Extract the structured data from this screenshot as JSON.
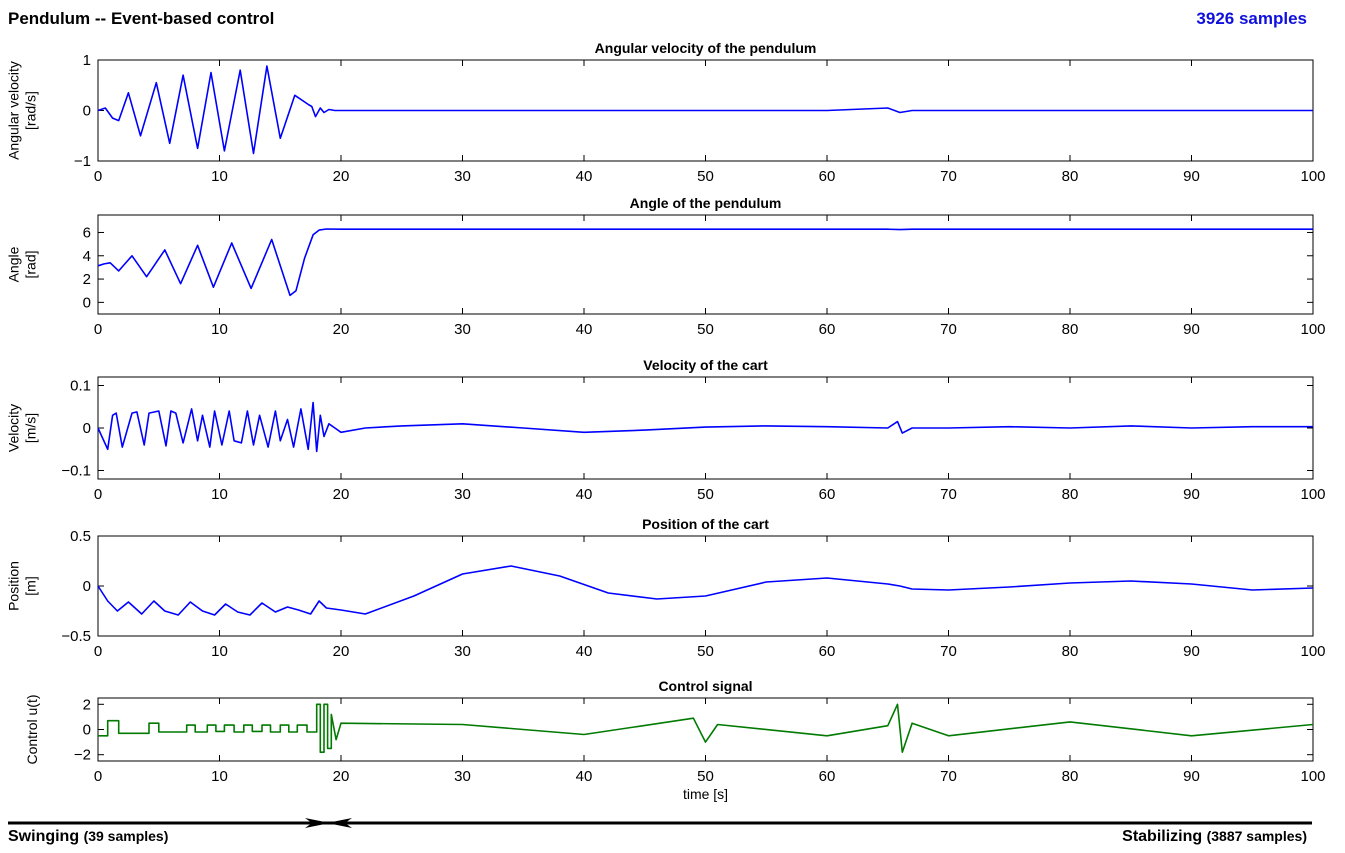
{
  "header": {
    "title": "Pendulum -- Event-based control",
    "samples": "3926 samples"
  },
  "phases": {
    "left_label": "Swinging",
    "left_count": "(39 samples)",
    "right_label": "Stabilizing",
    "right_count": "(3887 samples)"
  },
  "colors": {
    "series_blue": "#0000ff",
    "series_green": "#007a00",
    "samples_text": "#1010dd"
  },
  "chart_data": [
    {
      "type": "line",
      "title": "Angular velocity of the pendulum",
      "ylabel": [
        "Angular velocity",
        "[rad/s]"
      ],
      "xlim": [
        0,
        100
      ],
      "ylim": [
        -1,
        1
      ],
      "xticks": [
        0,
        10,
        20,
        30,
        40,
        50,
        60,
        70,
        80,
        90,
        100
      ],
      "yticks": [
        -1,
        0,
        1
      ],
      "color": "#0000ff",
      "series": [
        {
          "x": [
            0,
            0.6,
            1.2,
            1.7,
            2.5,
            3.5,
            4.8,
            5.9,
            7,
            8.2,
            9.3,
            10.4,
            11.7,
            12.8,
            13.9,
            15,
            16.2,
            17.3,
            17.6,
            17.9,
            18.3,
            18.6,
            19,
            19.5,
            20,
            21,
            25,
            30,
            35,
            40,
            45,
            50,
            55,
            60,
            65,
            66,
            67,
            70,
            75,
            80,
            85,
            90,
            95,
            100
          ],
          "y": [
            0,
            0.05,
            -0.15,
            -0.2,
            0.35,
            -0.5,
            0.55,
            -0.65,
            0.7,
            -0.75,
            0.75,
            -0.8,
            0.8,
            -0.85,
            0.88,
            -0.55,
            0.3,
            0.12,
            0.08,
            -0.12,
            0.05,
            -0.04,
            0.02,
            0,
            0,
            0,
            0,
            0,
            0,
            0,
            0,
            0,
            0,
            0,
            0.05,
            -0.04,
            0,
            0,
            0,
            0,
            0,
            0,
            0,
            0
          ]
        }
      ]
    },
    {
      "type": "line",
      "title": "Angle of the pendulum",
      "ylabel": [
        "Angle",
        "[rad]"
      ],
      "xlim": [
        0,
        100
      ],
      "ylim": [
        -1,
        7.5
      ],
      "xticks": [
        0,
        10,
        20,
        30,
        40,
        50,
        60,
        70,
        80,
        90,
        100
      ],
      "yticks": [
        0,
        2,
        4,
        6
      ],
      "color": "#0000ff",
      "series": [
        {
          "x": [
            0,
            0.5,
            1,
            1.7,
            2.8,
            4,
            5.5,
            6.8,
            8.2,
            9.5,
            11,
            12.6,
            14.3,
            15.8,
            16.3,
            17,
            17.7,
            18.2,
            18.8,
            20,
            30,
            40,
            50,
            60,
            65,
            66,
            67,
            70,
            80,
            90,
            100
          ],
          "y": [
            3.14,
            3.3,
            3.4,
            2.7,
            4.0,
            2.2,
            4.5,
            1.6,
            4.9,
            1.3,
            5.1,
            1.2,
            5.4,
            0.6,
            1.0,
            3.8,
            5.8,
            6.2,
            6.3,
            6.28,
            6.28,
            6.28,
            6.28,
            6.28,
            6.28,
            6.25,
            6.28,
            6.28,
            6.28,
            6.28,
            6.28
          ]
        }
      ]
    },
    {
      "type": "line",
      "title": "Velocity of the cart",
      "ylabel": [
        "Velocity",
        "[m/s]"
      ],
      "xlim": [
        0,
        100
      ],
      "ylim": [
        -0.12,
        0.12
      ],
      "xticks": [
        0,
        10,
        20,
        30,
        40,
        50,
        60,
        70,
        80,
        90,
        100
      ],
      "yticks": [
        -0.1,
        0,
        0.1
      ],
      "color": "#0000ff",
      "series": [
        {
          "x": [
            0,
            0.8,
            1.2,
            1.5,
            2,
            2.8,
            3.2,
            3.8,
            4.2,
            5,
            5.6,
            6,
            6.4,
            7,
            7.7,
            8.2,
            8.6,
            9.2,
            9.6,
            10.2,
            10.8,
            11.2,
            11.8,
            12.3,
            12.8,
            13.3,
            14,
            14.6,
            15,
            15.6,
            16.1,
            16.7,
            17.3,
            17.7,
            18,
            18.3,
            18.6,
            19,
            19.5,
            20,
            22,
            25,
            30,
            35,
            40,
            45,
            50,
            55,
            60,
            65,
            65.8,
            66.2,
            67,
            70,
            75,
            80,
            85,
            90,
            95,
            100
          ],
          "y": [
            0,
            -0.05,
            0.03,
            0.035,
            -0.045,
            0.035,
            0.038,
            -0.04,
            0.035,
            0.04,
            -0.042,
            0.04,
            0.035,
            -0.035,
            0.045,
            -0.03,
            0.03,
            -0.045,
            0.04,
            -0.04,
            0.04,
            -0.03,
            -0.035,
            0.04,
            -0.04,
            0.03,
            -0.045,
            0.04,
            -0.03,
            0.02,
            -0.045,
            0.045,
            -0.05,
            0.06,
            -0.055,
            0.03,
            -0.02,
            0.01,
            0,
            -0.01,
            0,
            0.005,
            0.01,
            0,
            -0.01,
            -0.005,
            0.002,
            0.005,
            0.003,
            0,
            0.015,
            -0.012,
            0,
            0,
            0.003,
            0,
            0.005,
            0,
            0.003,
            0.003
          ]
        }
      ]
    },
    {
      "type": "line",
      "title": "Position of the cart",
      "ylabel": [
        "Position",
        "[m]"
      ],
      "xlim": [
        0,
        100
      ],
      "ylim": [
        -0.5,
        0.5
      ],
      "xticks": [
        0,
        10,
        20,
        30,
        40,
        50,
        60,
        70,
        80,
        90,
        100
      ],
      "yticks": [
        -0.5,
        0,
        0.5
      ],
      "color": "#0000ff",
      "series": [
        {
          "x": [
            0,
            0.8,
            1.6,
            2.5,
            3.6,
            4.6,
            5.5,
            6.6,
            7.6,
            8.6,
            9.6,
            10.5,
            11.5,
            12.5,
            13.5,
            14.6,
            15.6,
            16.5,
            17.5,
            18.2,
            18.8,
            20,
            22,
            26,
            30,
            34,
            38,
            42,
            46,
            50,
            55,
            60,
            65,
            66,
            67,
            70,
            75,
            80,
            85,
            90,
            95,
            100
          ],
          "y": [
            0,
            -0.15,
            -0.25,
            -0.16,
            -0.28,
            -0.15,
            -0.25,
            -0.29,
            -0.16,
            -0.25,
            -0.29,
            -0.18,
            -0.26,
            -0.29,
            -0.17,
            -0.26,
            -0.21,
            -0.24,
            -0.28,
            -0.15,
            -0.22,
            -0.24,
            -0.28,
            -0.1,
            0.12,
            0.2,
            0.1,
            -0.07,
            -0.13,
            -0.1,
            0.04,
            0.08,
            0.02,
            0,
            -0.03,
            -0.04,
            -0.01,
            0.03,
            0.05,
            0.02,
            -0.04,
            -0.02
          ]
        }
      ]
    },
    {
      "type": "line",
      "title": "Control signal",
      "ylabel": [
        "Control u(t)"
      ],
      "xlabel": "time [s]",
      "xlim": [
        0,
        100
      ],
      "ylim": [
        -2.5,
        2.5
      ],
      "xticks": [
        0,
        10,
        20,
        30,
        40,
        50,
        60,
        70,
        80,
        90,
        100
      ],
      "yticks": [
        -2,
        0,
        2
      ],
      "color": "#007a00",
      "series": [
        {
          "x": [
            0,
            0.8,
            0.8,
            1.7,
            1.7,
            4.2,
            4.2,
            5,
            5,
            7.3,
            7.3,
            8,
            8,
            9,
            9,
            9.7,
            9.7,
            10.4,
            10.4,
            11.2,
            11.2,
            12,
            12,
            12.7,
            12.7,
            13.5,
            13.5,
            14.2,
            14.2,
            15,
            15,
            15.7,
            15.7,
            16.4,
            16.4,
            17.2,
            17.2,
            18,
            18,
            18.3,
            18.3,
            18.6,
            18.6,
            18.9,
            18.9,
            19.2,
            19.2,
            19.6,
            20,
            30,
            40,
            49,
            50,
            51,
            60,
            65,
            65.8,
            66.2,
            67,
            70,
            80,
            90,
            100
          ],
          "y": [
            -0.5,
            -0.5,
            0.7,
            0.7,
            -0.3,
            -0.3,
            0.5,
            0.5,
            -0.2,
            -0.2,
            0.35,
            0.35,
            -0.2,
            -0.2,
            0.35,
            0.35,
            -0.15,
            -0.15,
            0.35,
            0.35,
            -0.2,
            -0.2,
            0.35,
            0.35,
            -0.15,
            -0.15,
            0.35,
            0.35,
            -0.2,
            -0.2,
            0.35,
            0.35,
            -0.2,
            -0.2,
            0.35,
            0.35,
            -0.2,
            -0.2,
            2,
            2,
            -1.8,
            -1.8,
            2,
            2,
            -1.5,
            -1.5,
            1.2,
            -0.8,
            0.5,
            0.4,
            -0.4,
            0.9,
            -1,
            0.4,
            -0.5,
            0.3,
            2.0,
            -1.8,
            0.5,
            -0.5,
            0.6,
            -0.5,
            0.4
          ]
        }
      ]
    }
  ]
}
